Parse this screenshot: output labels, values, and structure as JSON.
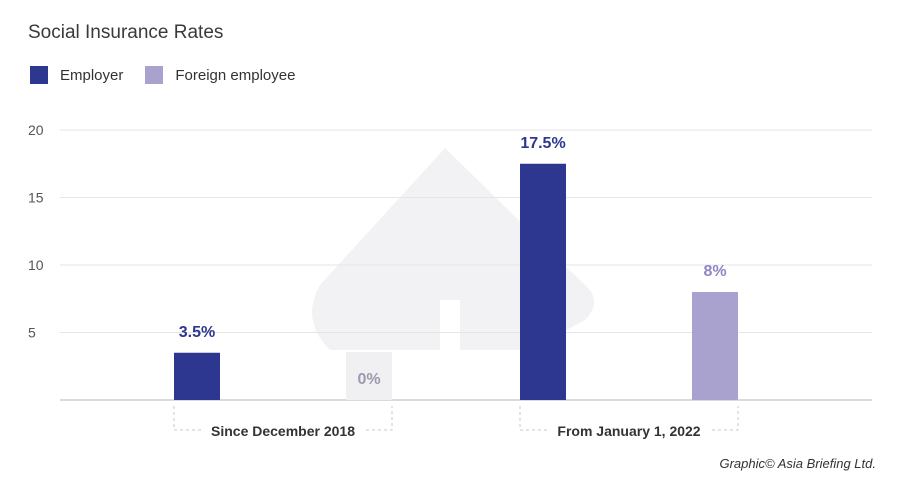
{
  "chart_data": {
    "type": "bar",
    "title": "Social Insurance Rates",
    "categories": [
      "Since December 2018",
      "From January 1, 2022"
    ],
    "series": [
      {
        "name": "Employer",
        "color": "#2d3790",
        "values": [
          3.5,
          17.5
        ],
        "labels": [
          "3.5%",
          "17.5%"
        ]
      },
      {
        "name": "Foreign employee",
        "color": "#a9a2cf",
        "values": [
          0,
          8
        ],
        "labels": [
          "0%",
          "8%"
        ]
      }
    ],
    "y_ticks": [
      5,
      10,
      15,
      20
    ],
    "ylim": [
      0,
      20
    ],
    "grid": true,
    "legend": "top-left",
    "xlabel": "",
    "ylabel": ""
  },
  "credit": "Graphic© Asia Briefing Ltd."
}
